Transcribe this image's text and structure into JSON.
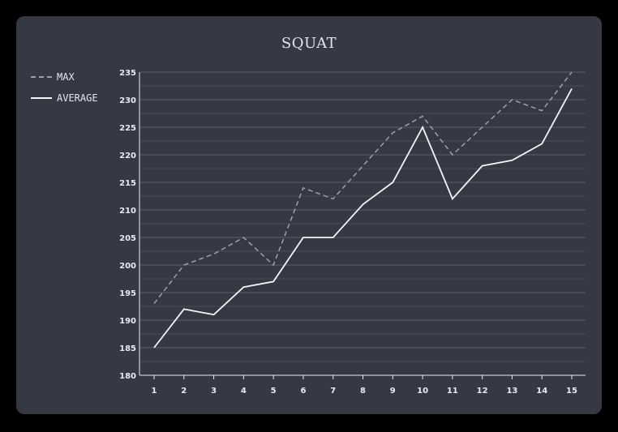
{
  "chart_data": {
    "type": "line",
    "title": "SQUAT",
    "xlabel": "",
    "ylabel": "",
    "x": [
      1,
      2,
      3,
      4,
      5,
      6,
      7,
      8,
      9,
      10,
      11,
      12,
      13,
      14,
      15
    ],
    "ylim": [
      180,
      235
    ],
    "yticks": [
      180,
      185,
      190,
      195,
      200,
      205,
      210,
      215,
      220,
      225,
      230,
      235
    ],
    "grid": true,
    "legend_position": "top-left",
    "series": [
      {
        "name": "MAX",
        "style": "dashed",
        "color": "#9aa0ad",
        "values": [
          193,
          200,
          202,
          205,
          200,
          214,
          212,
          218,
          224,
          227,
          220,
          225,
          230,
          228,
          235
        ]
      },
      {
        "name": "AVERAGE",
        "style": "solid",
        "color": "#f2f5fb",
        "values": [
          185,
          192,
          191,
          196,
          197,
          205,
          205,
          211,
          215,
          225,
          212,
          218,
          219,
          222,
          232
        ]
      }
    ]
  },
  "colors": {
    "background": "#363944",
    "frame": "#000000",
    "grid": "#5c606c",
    "text": "#dfe6f4"
  }
}
